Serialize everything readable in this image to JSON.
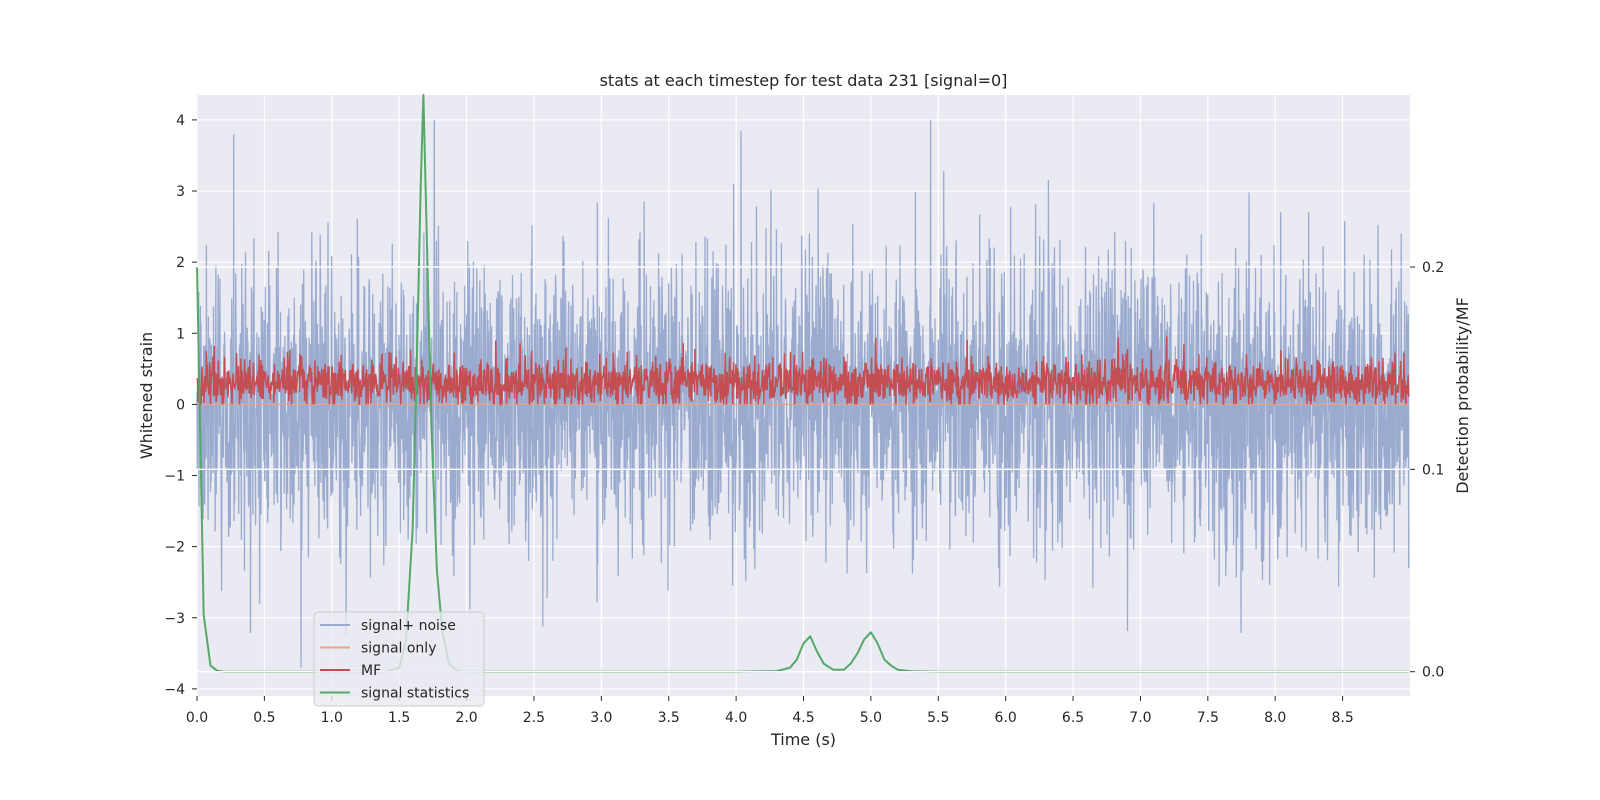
{
  "chart_data": {
    "type": "line",
    "title": "stats at each timestep for test data 231 [signal=0]",
    "xlabel": "Time (s)",
    "ylabel": "Whitened strain",
    "ylabel_right": "Detection probability/MF",
    "xlim": [
      0.0,
      9.0
    ],
    "ylim": [
      -4.1,
      4.35
    ],
    "ylim_right": [
      -0.012,
      0.285
    ],
    "x_ticks": [
      0.0,
      0.5,
      1.0,
      1.5,
      2.0,
      2.5,
      3.0,
      3.5,
      4.0,
      4.5,
      5.0,
      5.5,
      6.0,
      6.5,
      7.0,
      7.5,
      8.0,
      8.5
    ],
    "x_tick_labels": [
      "0.0",
      "0.5",
      "1.0",
      "1.5",
      "2.0",
      "2.5",
      "3.0",
      "3.5",
      "4.0",
      "4.5",
      "5.0",
      "5.5",
      "6.0",
      "6.5",
      "7.0",
      "7.5",
      "8.0",
      "8.5"
    ],
    "y_ticks": [
      4,
      3,
      2,
      1,
      0,
      -1,
      -2,
      -3,
      -4
    ],
    "y_tick_labels": [
      "4",
      "3",
      "2",
      "1",
      "0",
      "−1",
      "−2",
      "−3",
      "−4"
    ],
    "y_right_ticks": [
      0.2,
      0.1,
      0.0
    ],
    "y_right_tick_labels": [
      "0.2",
      "0.1",
      "0.0"
    ],
    "grid": true,
    "legend_position": "lower-left",
    "series": [
      {
        "name": "signal+ noise",
        "axis": "left",
        "color": "#9aabcf",
        "style": "dense noisy trace, roughly symmetric about 0, amplitude mostly within ±2.5 with spikes reaching about +4.0 and -3.7",
        "x_range": [
          0.0,
          8.99
        ],
        "typical_range": [
          -2.5,
          2.5
        ],
        "extremes": [
          -3.7,
          4.0
        ]
      },
      {
        "name": "signal only",
        "axis": "left",
        "color": "#e8a38b",
        "x": [
          0.0,
          8.99
        ],
        "y": [
          0.0,
          0.0
        ]
      },
      {
        "name": "MF",
        "axis": "left",
        "color": "#c44e52",
        "style": "dense noisy trace between about 0.0 and 0.85, centered near 0.3",
        "x_range": [
          0.0,
          8.99
        ],
        "typical_range": [
          0.0,
          0.85
        ],
        "extremes": [
          0.0,
          1.0
        ]
      },
      {
        "name": "signal statistics",
        "axis": "right",
        "color": "#55a868",
        "x": [
          0.0,
          0.05,
          0.1,
          0.15,
          0.2,
          0.3,
          0.5,
          1.0,
          1.4,
          1.5,
          1.55,
          1.6,
          1.63,
          1.66,
          1.68,
          1.71,
          1.74,
          1.78,
          1.82,
          1.87,
          1.93,
          2.0,
          3.0,
          4.0,
          4.3,
          4.4,
          4.45,
          4.5,
          4.55,
          4.6,
          4.65,
          4.72,
          4.8,
          4.85,
          4.9,
          4.95,
          5.0,
          5.05,
          5.1,
          5.15,
          5.2,
          5.3,
          5.5,
          6.0,
          7.0,
          8.0,
          8.99
        ],
        "y": [
          0.2,
          0.028,
          0.003,
          0.0005,
          0.0,
          0.0,
          0.0,
          0.0,
          0.0,
          0.002,
          0.015,
          0.07,
          0.15,
          0.24,
          0.285,
          0.2,
          0.12,
          0.05,
          0.02,
          0.004,
          0.0005,
          0.0,
          0.0,
          0.0,
          0.0003,
          0.002,
          0.006,
          0.014,
          0.0175,
          0.01,
          0.004,
          0.001,
          0.001,
          0.004,
          0.009,
          0.016,
          0.0195,
          0.014,
          0.006,
          0.003,
          0.001,
          0.0002,
          0.0,
          0.0,
          0.0,
          0.0,
          0.0
        ]
      }
    ]
  }
}
